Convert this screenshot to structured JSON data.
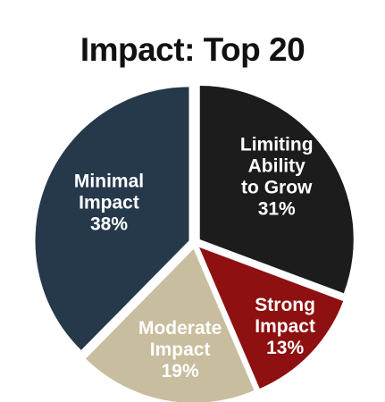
{
  "chart_data": {
    "type": "pie",
    "title": "Impact: Top 20",
    "slices": [
      {
        "label_lines": [
          "Limiting",
          "Ability",
          "to Grow"
        ],
        "value": 31,
        "value_label": "31%",
        "color": "#1c1c1c",
        "text_color": "#ffffff"
      },
      {
        "label_lines": [
          "Strong",
          "Impact"
        ],
        "value": 13,
        "value_label": "13%",
        "color": "#8e1010",
        "text_color": "#ffffff"
      },
      {
        "label_lines": [
          "Moderate",
          "Impact"
        ],
        "value": 19,
        "value_label": "19%",
        "color": "#c8bd9e",
        "text_color": "#ffffff"
      },
      {
        "label_lines": [
          "Minimal",
          "Impact"
        ],
        "value": 38,
        "value_label": "38%",
        "color": "#25394a",
        "text_color": "#ffffff"
      }
    ]
  }
}
